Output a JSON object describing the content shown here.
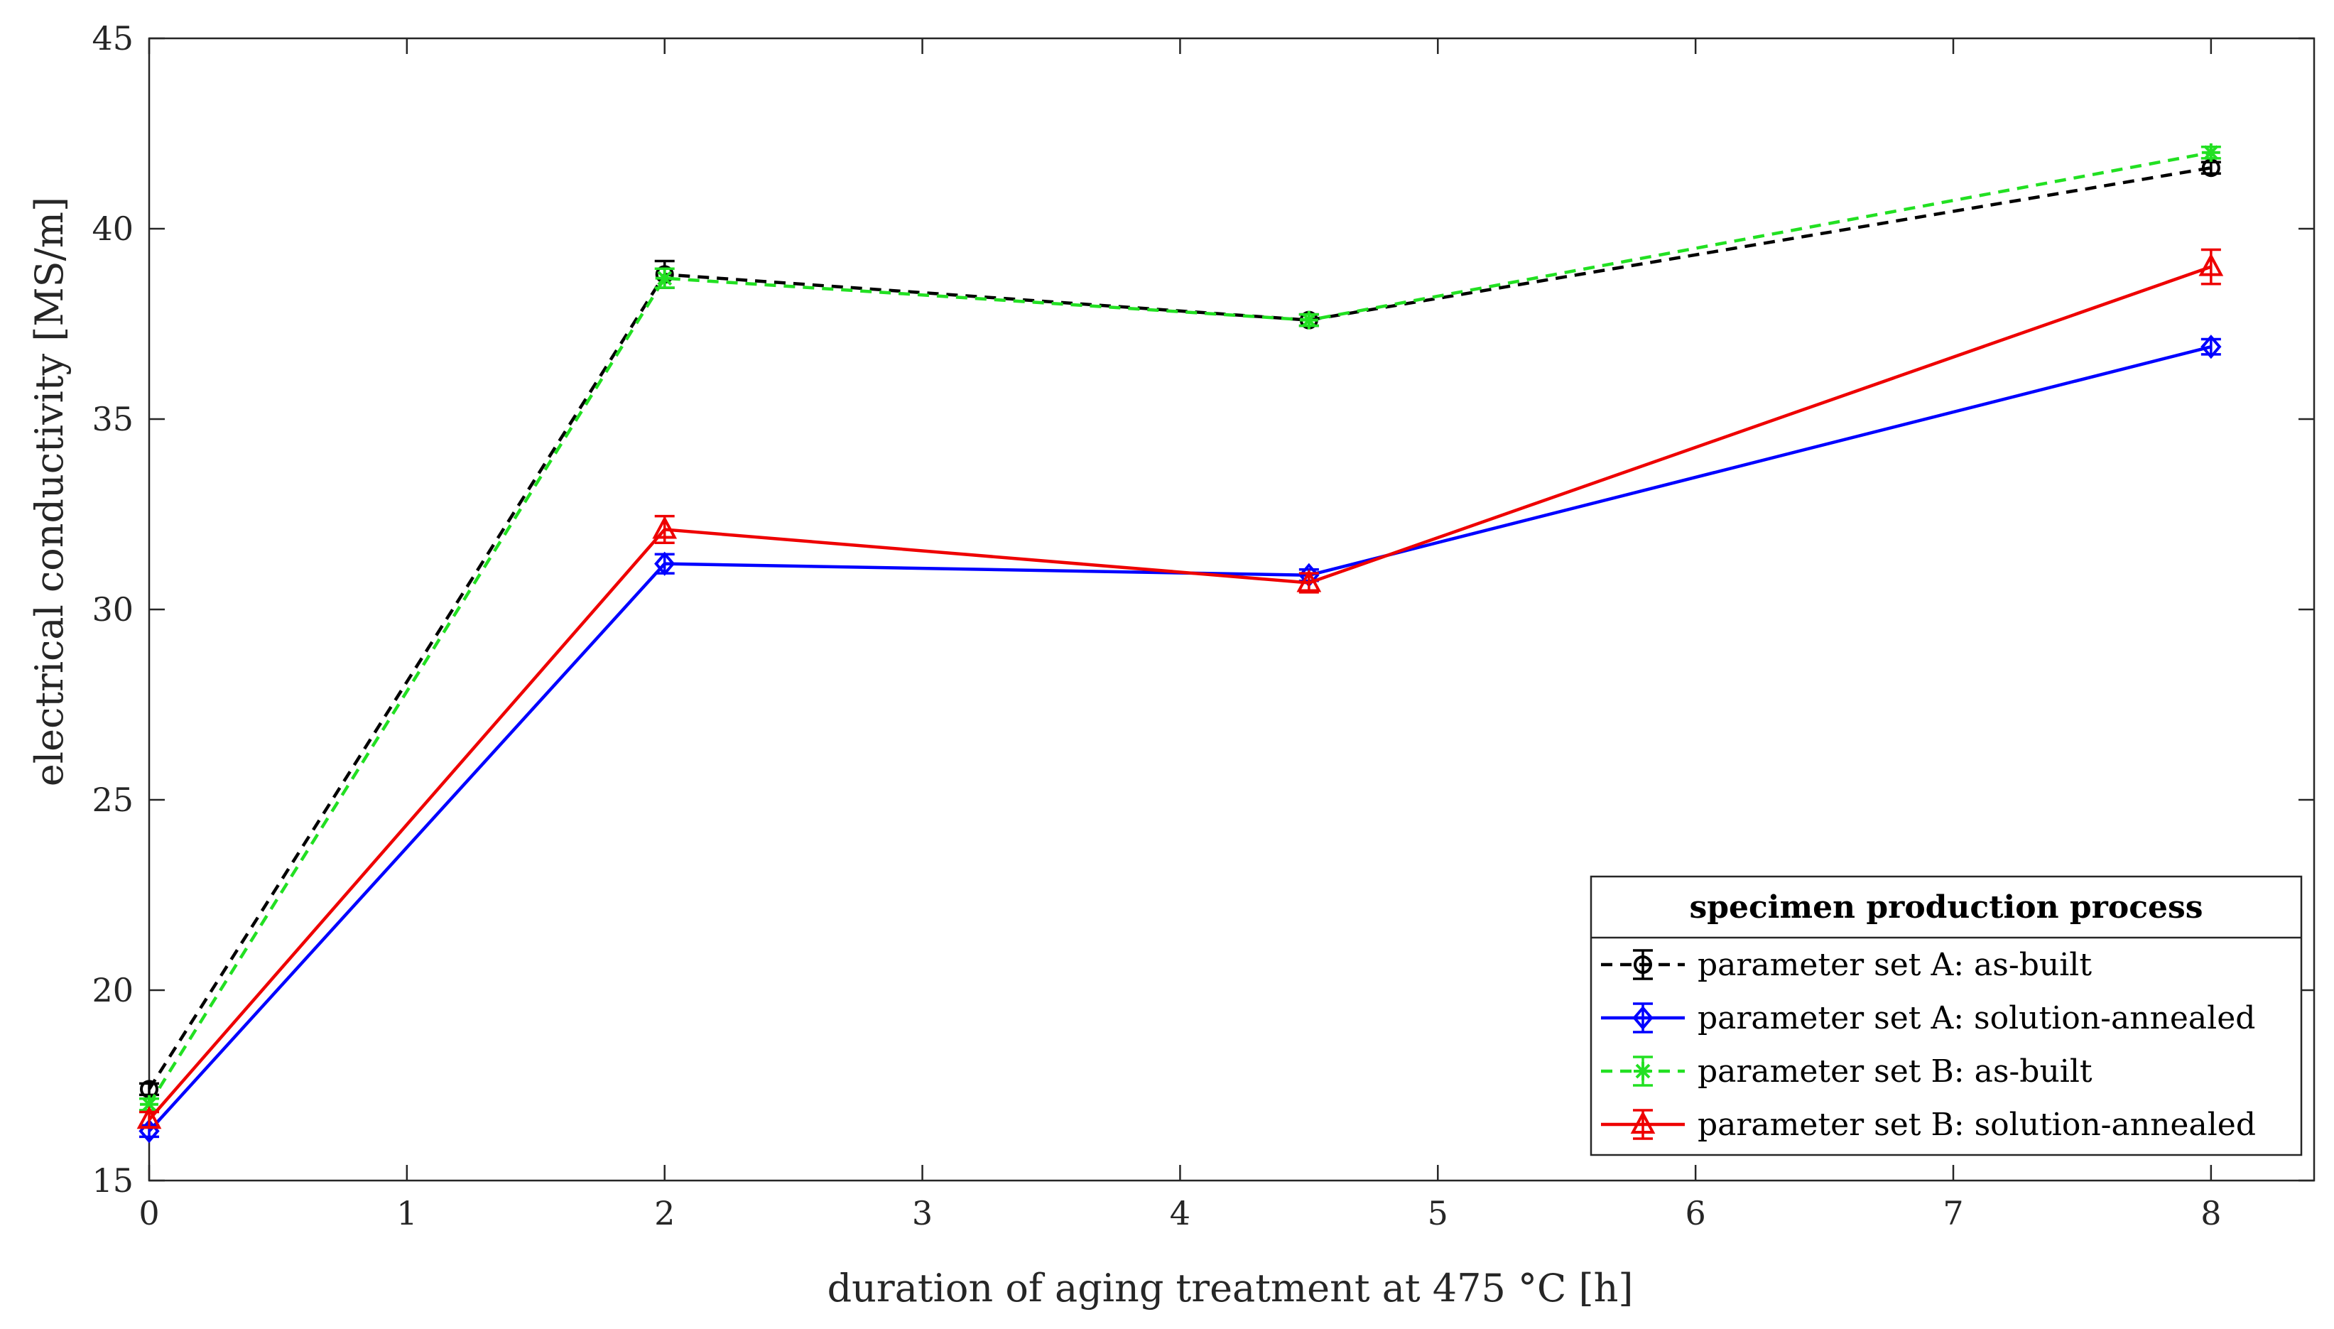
{
  "chart_data": {
    "type": "line",
    "xlabel": "duration of aging treatment at 475 °C [h]",
    "ylabel": "electrical conductivity [MS/m]",
    "xlim": [
      0,
      8.4
    ],
    "ylim": [
      15,
      45
    ],
    "xticks": [
      0,
      1,
      2,
      3,
      4,
      5,
      6,
      7,
      8
    ],
    "yticks": [
      15,
      20,
      25,
      30,
      35,
      40,
      45
    ],
    "grid": false,
    "legend": {
      "title": "specimen production process",
      "position": "bottom-right"
    },
    "series": [
      {
        "name": "parameter set A: as-built",
        "color": "#000000",
        "dash": "dashed",
        "marker": "circle",
        "x": [
          0,
          2,
          4.5,
          8
        ],
        "y": [
          17.4,
          38.8,
          37.6,
          41.6
        ],
        "err": [
          0.15,
          0.35,
          0.15,
          0.15
        ]
      },
      {
        "name": "parameter set A: solution-annealed",
        "color": "#0000ff",
        "dash": "solid",
        "marker": "diamond",
        "x": [
          0,
          2,
          4.5,
          8
        ],
        "y": [
          16.3,
          31.2,
          30.9,
          36.9
        ],
        "err": [
          0.15,
          0.25,
          0.15,
          0.2
        ]
      },
      {
        "name": "parameter set B: as-built",
        "color": "#22e022",
        "dash": "dashed",
        "marker": "asterisk",
        "x": [
          0,
          2,
          4.5,
          8
        ],
        "y": [
          17.0,
          38.7,
          37.6,
          42.0
        ],
        "err": [
          0.15,
          0.25,
          0.15,
          0.15
        ]
      },
      {
        "name": "parameter set B: solution-annealed",
        "color": "#ee0000",
        "dash": "solid",
        "marker": "triangle",
        "x": [
          0,
          2,
          4.5,
          8
        ],
        "y": [
          16.6,
          32.1,
          30.7,
          39.0
        ],
        "err": [
          0.2,
          0.35,
          0.25,
          0.45
        ]
      }
    ]
  }
}
